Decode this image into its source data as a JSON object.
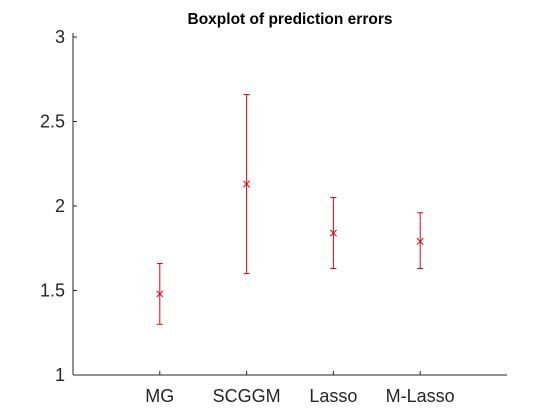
{
  "chart_data": {
    "type": "errorbar",
    "title": "Boxplot of prediction errors",
    "xlabel": "",
    "ylabel": "",
    "categories": [
      "MG",
      "SCGGM",
      "Lasso",
      "M-Lasso"
    ],
    "series": [
      {
        "mean": [
          1.48,
          2.13,
          1.84,
          1.79
        ],
        "lower": [
          1.3,
          1.6,
          1.63,
          1.63
        ],
        "upper": [
          1.66,
          2.66,
          2.05,
          1.96
        ]
      }
    ],
    "xlim": [
      0,
      5
    ],
    "ylim": [
      1,
      3
    ],
    "yticks": [
      "1",
      "1.5",
      "2",
      "2.5",
      "3"
    ],
    "grid": false,
    "colors": {
      "series": "#e8000b",
      "axis": "#262626",
      "text": "#262626"
    }
  }
}
